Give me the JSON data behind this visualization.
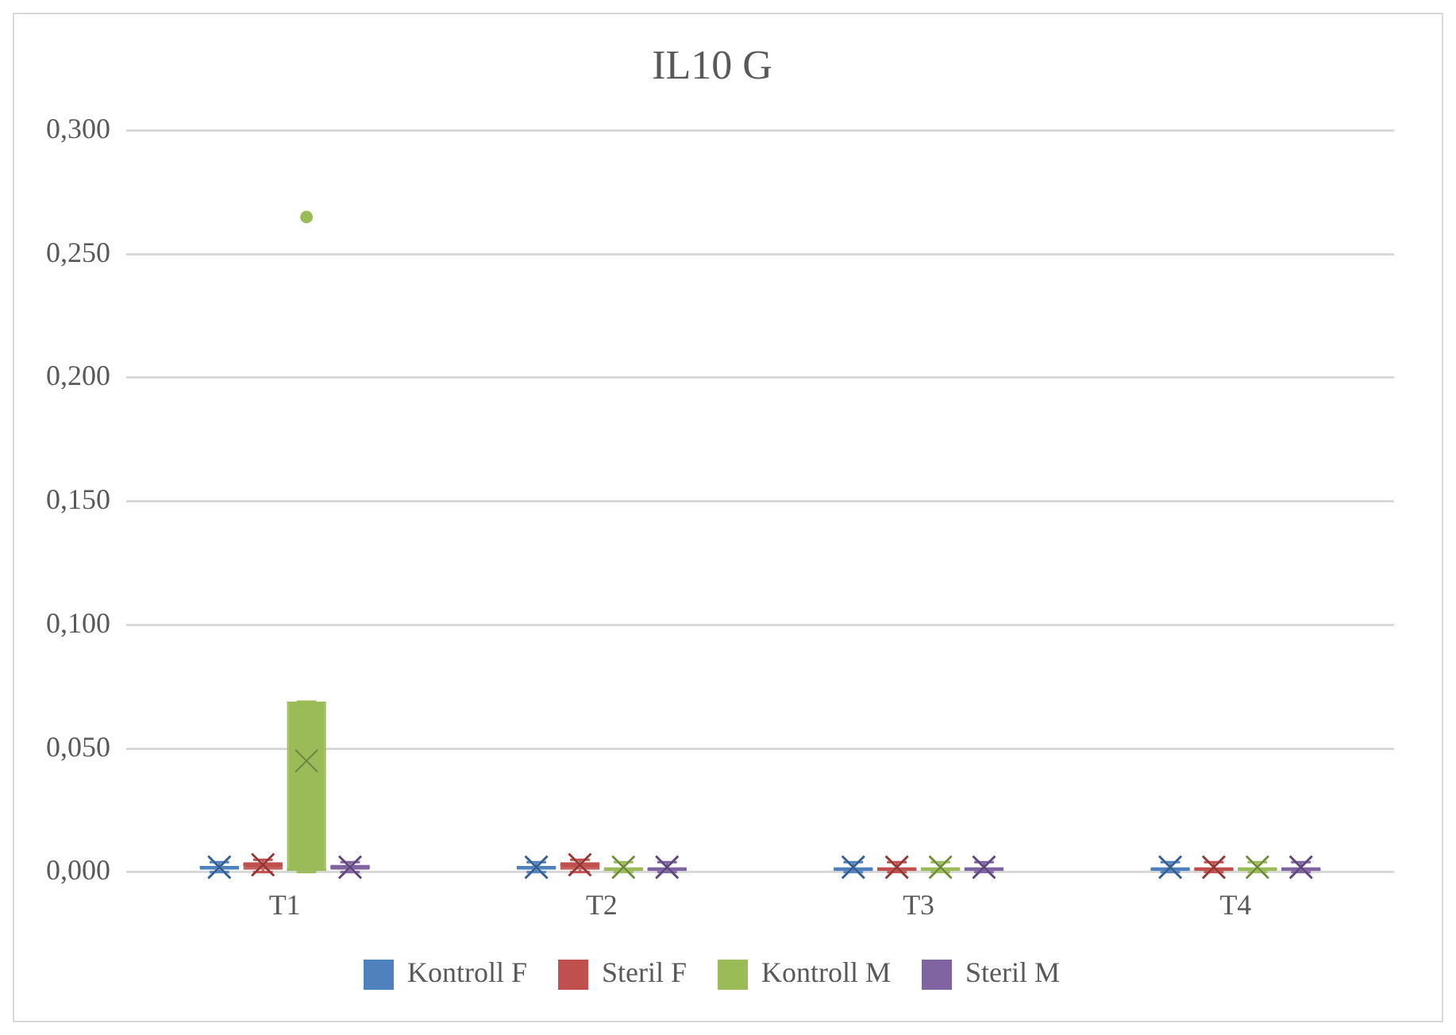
{
  "chart_data": {
    "type": "box",
    "title": "IL10 G",
    "categories": [
      "T1",
      "T2",
      "T3",
      "T4"
    ],
    "ylim": [
      0,
      0.3
    ],
    "yticks": [
      {
        "value": 0,
        "label": "0,000"
      },
      {
        "value": 0.05,
        "label": "0,050"
      },
      {
        "value": 0.1,
        "label": "0,100"
      },
      {
        "value": 0.15,
        "label": "0,150"
      },
      {
        "value": 0.2,
        "label": "0,200"
      },
      {
        "value": 0.25,
        "label": "0,250"
      },
      {
        "value": 0.3,
        "label": "0,300"
      }
    ],
    "grid": "y",
    "legend": "bottom",
    "series": [
      {
        "name": "Kontroll F",
        "color": "#4f81bd",
        "boxes": [
          {
            "low": 0,
            "q1": 0.001,
            "median": 0.002,
            "q3": 0.002,
            "high": 0.004,
            "mean": 0.002
          },
          {
            "low": 0,
            "q1": 0.001,
            "median": 0.002,
            "q3": 0.002,
            "high": 0.004,
            "mean": 0.002
          },
          {
            "low": 0,
            "q1": 0.001,
            "median": 0.001,
            "q3": 0.002,
            "high": 0.004,
            "mean": 0.002
          },
          {
            "low": 0,
            "q1": 0.001,
            "median": 0.001,
            "q3": 0.002,
            "high": 0.004,
            "mean": 0.002
          }
        ]
      },
      {
        "name": "Steril F",
        "color": "#c0504d",
        "boxes": [
          {
            "low": 0,
            "q1": 0.001,
            "median": 0.003,
            "q3": 0.004,
            "high": 0.005,
            "mean": 0.003
          },
          {
            "low": 0,
            "q1": 0.001,
            "median": 0.003,
            "q3": 0.004,
            "high": 0.005,
            "mean": 0.003
          },
          {
            "low": 0,
            "q1": 0.001,
            "median": 0.001,
            "q3": 0.002,
            "high": 0.004,
            "mean": 0.002
          },
          {
            "low": 0,
            "q1": 0.001,
            "median": 0.001,
            "q3": 0.002,
            "high": 0.004,
            "mean": 0.002
          }
        ]
      },
      {
        "name": "Kontroll M",
        "color": "#9bbb59",
        "boxes": [
          {
            "low": 0,
            "q1": 0,
            "median": 0.001,
            "q3": 0.069,
            "high": 0.069,
            "mean": 0.045,
            "outliers": [
              0.265
            ]
          },
          {
            "low": 0,
            "q1": 0.001,
            "median": 0.001,
            "q3": 0.002,
            "high": 0.004,
            "mean": 0.002
          },
          {
            "low": 0,
            "q1": 0.001,
            "median": 0.001,
            "q3": 0.002,
            "high": 0.004,
            "mean": 0.002
          },
          {
            "low": 0,
            "q1": 0.001,
            "median": 0.001,
            "q3": 0.002,
            "high": 0.004,
            "mean": 0.002
          }
        ]
      },
      {
        "name": "Steril M",
        "color": "#8064a2",
        "boxes": [
          {
            "low": 0,
            "q1": 0.001,
            "median": 0.002,
            "q3": 0.003,
            "high": 0.004,
            "mean": 0.002
          },
          {
            "low": 0,
            "q1": 0.001,
            "median": 0.001,
            "q3": 0.002,
            "high": 0.004,
            "mean": 0.002
          },
          {
            "low": 0,
            "q1": 0.001,
            "median": 0.001,
            "q3": 0.002,
            "high": 0.004,
            "mean": 0.002
          },
          {
            "low": 0,
            "q1": 0.001,
            "median": 0.001,
            "q3": 0.002,
            "high": 0.004,
            "mean": 0.002
          }
        ]
      }
    ]
  }
}
